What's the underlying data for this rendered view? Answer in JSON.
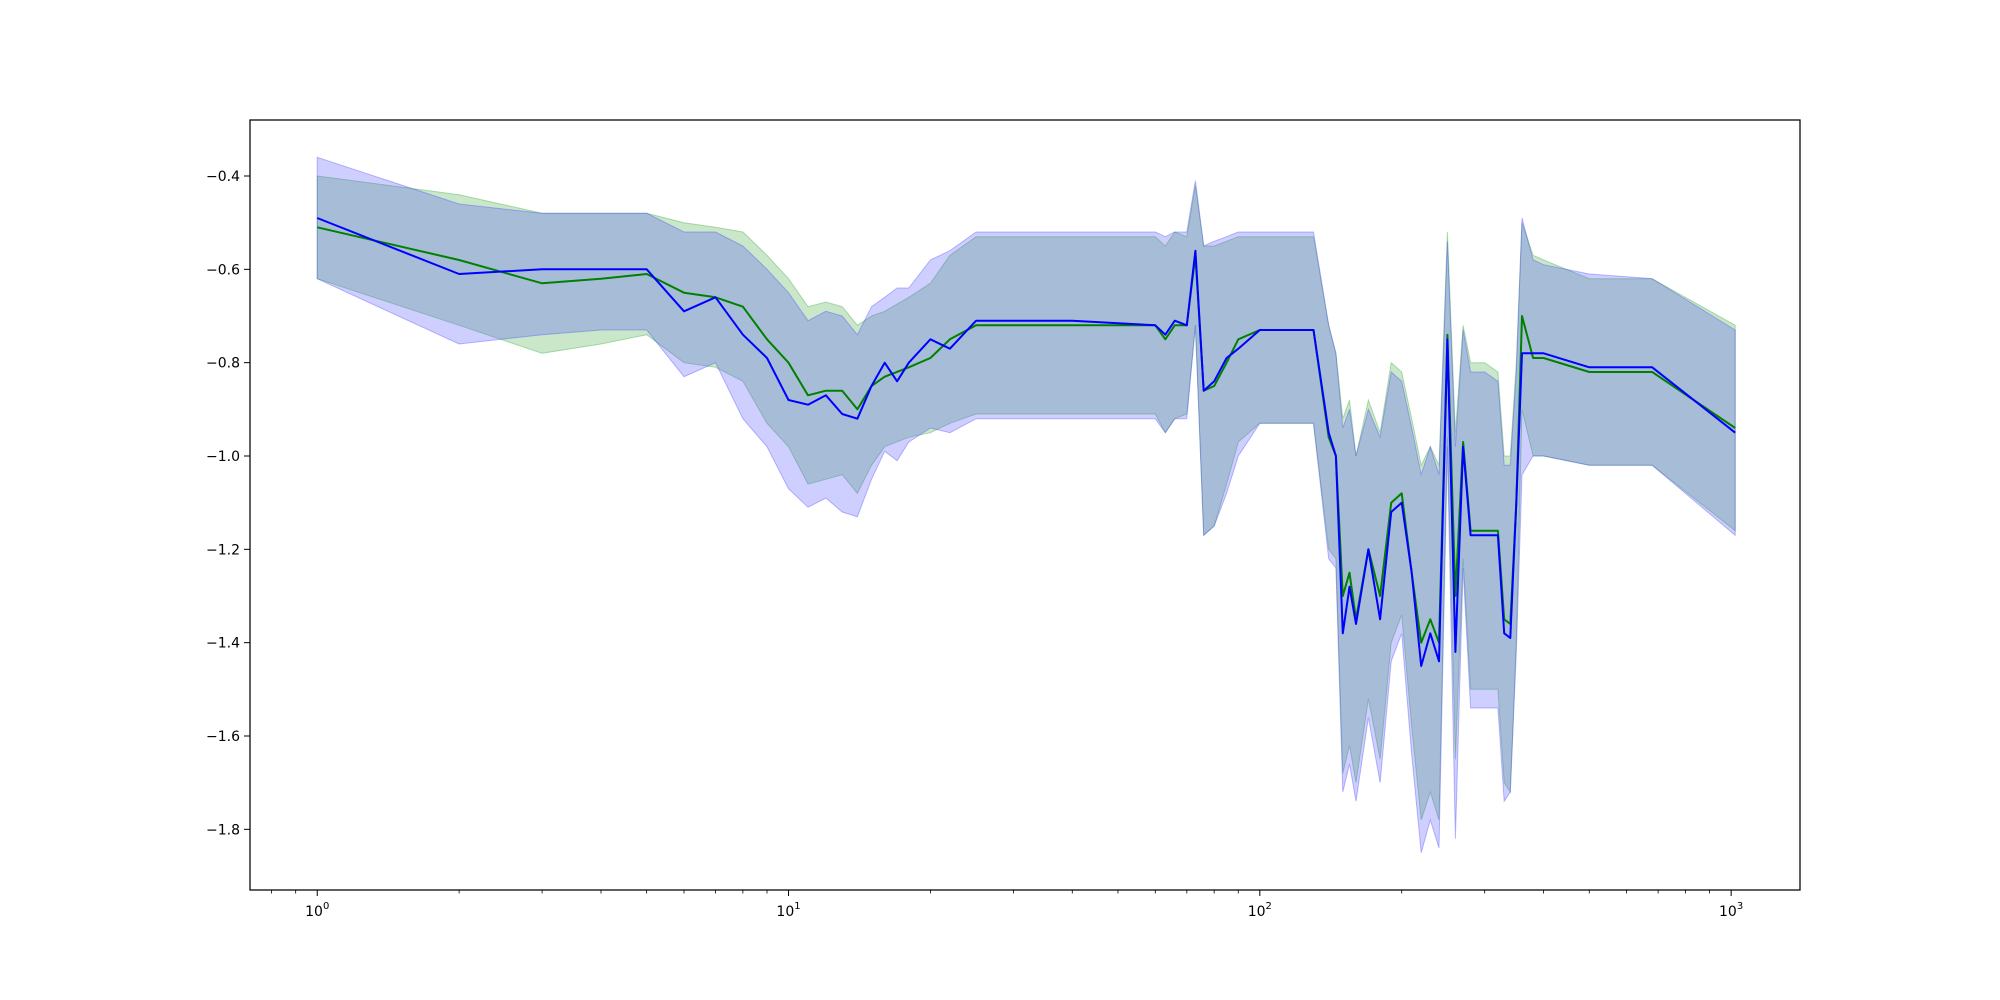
{
  "chart_data": {
    "type": "line",
    "title": "",
    "xlabel": "",
    "ylabel": "",
    "x_scale": "log",
    "xlim": [
      0.72,
      1400
    ],
    "ylim": [
      -1.93,
      -0.28
    ],
    "grid": false,
    "x_ticks": [
      {
        "value": 1,
        "base": "10",
        "exp": "0"
      },
      {
        "value": 10,
        "base": "10",
        "exp": "1"
      },
      {
        "value": 100,
        "base": "10",
        "exp": "2"
      },
      {
        "value": 1000,
        "base": "10",
        "exp": "3"
      }
    ],
    "y_ticks": [
      {
        "value": -0.4,
        "label": "−0.4"
      },
      {
        "value": -0.6,
        "label": "−0.6"
      },
      {
        "value": -0.8,
        "label": "−0.8"
      },
      {
        "value": -1.0,
        "label": "−1.0"
      },
      {
        "value": -1.2,
        "label": "−1.2"
      },
      {
        "value": -1.4,
        "label": "−1.4"
      },
      {
        "value": -1.6,
        "label": "−1.6"
      },
      {
        "value": -1.8,
        "label": "−1.8"
      }
    ],
    "series": [
      {
        "color": "#008000",
        "band_color": "#2ca02c",
        "x": [
          1,
          2,
          3,
          4,
          5,
          6,
          7,
          8,
          9,
          10,
          11,
          12,
          13,
          14,
          15,
          16,
          18,
          20,
          22,
          25,
          40,
          60,
          63,
          66,
          70,
          73,
          76,
          80,
          85,
          90,
          100,
          130,
          140,
          145,
          150,
          155,
          160,
          170,
          180,
          190,
          200,
          210,
          220,
          230,
          240,
          250,
          260,
          270,
          280,
          300,
          320,
          330,
          340,
          350,
          360,
          380,
          400,
          500,
          680,
          1020
        ],
        "y": [
          -0.51,
          -0.58,
          -0.63,
          -0.62,
          -0.61,
          -0.65,
          -0.66,
          -0.68,
          -0.75,
          -0.8,
          -0.87,
          -0.86,
          -0.86,
          -0.9,
          -0.85,
          -0.83,
          -0.81,
          -0.79,
          -0.75,
          -0.72,
          -0.72,
          -0.72,
          -0.75,
          -0.72,
          -0.72,
          -0.57,
          -0.86,
          -0.85,
          -0.8,
          -0.75,
          -0.73,
          -0.73,
          -0.96,
          -1.0,
          -1.3,
          -1.25,
          -1.35,
          -1.2,
          -1.3,
          -1.1,
          -1.08,
          -1.25,
          -1.4,
          -1.35,
          -1.4,
          -0.74,
          -1.3,
          -0.97,
          -1.16,
          -1.16,
          -1.16,
          -1.35,
          -1.36,
          -1.1,
          -0.7,
          -0.79,
          -0.79,
          -0.82,
          -0.82,
          -0.94
        ],
        "upper": [
          -0.4,
          -0.44,
          -0.48,
          -0.48,
          -0.48,
          -0.5,
          -0.51,
          -0.52,
          -0.57,
          -0.62,
          -0.68,
          -0.67,
          -0.68,
          -0.72,
          -0.7,
          -0.69,
          -0.66,
          -0.63,
          -0.57,
          -0.53,
          -0.53,
          -0.53,
          -0.55,
          -0.52,
          -0.53,
          -0.42,
          -0.55,
          -0.55,
          -0.54,
          -0.53,
          -0.53,
          -0.53,
          -0.72,
          -0.78,
          -0.92,
          -0.88,
          -1.0,
          -0.88,
          -0.95,
          -0.8,
          -0.82,
          -0.92,
          -1.02,
          -0.98,
          -1.02,
          -0.52,
          -0.95,
          -0.72,
          -0.8,
          -0.8,
          -0.82,
          -1.0,
          -1.0,
          -0.8,
          -0.5,
          -0.57,
          -0.58,
          -0.62,
          -0.62,
          -0.72
        ],
        "lower": [
          -0.62,
          -0.72,
          -0.78,
          -0.76,
          -0.74,
          -0.8,
          -0.81,
          -0.84,
          -0.93,
          -0.98,
          -1.06,
          -1.05,
          -1.04,
          -1.08,
          -1.02,
          -0.98,
          -0.96,
          -0.95,
          -0.93,
          -0.91,
          -0.91,
          -0.91,
          -0.95,
          -0.92,
          -0.91,
          -0.72,
          -1.17,
          -1.15,
          -1.06,
          -0.97,
          -0.93,
          -0.93,
          -1.2,
          -1.22,
          -1.68,
          -1.62,
          -1.7,
          -1.52,
          -1.65,
          -1.4,
          -1.34,
          -1.58,
          -1.78,
          -1.72,
          -1.78,
          -0.96,
          -1.65,
          -1.22,
          -1.5,
          -1.5,
          -1.5,
          -1.7,
          -1.72,
          -1.4,
          -0.9,
          -1.0,
          -1.0,
          -1.02,
          -1.02,
          -1.16
        ]
      },
      {
        "color": "#0000ff",
        "band_color": "#4040ff",
        "x": [
          1,
          2,
          3,
          4,
          5,
          6,
          7,
          8,
          9,
          10,
          11,
          12,
          13,
          14,
          15,
          16,
          17,
          18,
          20,
          22,
          25,
          40,
          60,
          63,
          66,
          70,
          73,
          76,
          80,
          85,
          90,
          100,
          130,
          140,
          145,
          150,
          155,
          160,
          170,
          180,
          190,
          200,
          210,
          220,
          230,
          240,
          250,
          260,
          270,
          280,
          300,
          320,
          330,
          340,
          350,
          360,
          380,
          400,
          500,
          680,
          1020
        ],
        "y": [
          -0.49,
          -0.61,
          -0.6,
          -0.6,
          -0.6,
          -0.69,
          -0.66,
          -0.74,
          -0.79,
          -0.88,
          -0.89,
          -0.87,
          -0.91,
          -0.92,
          -0.85,
          -0.8,
          -0.84,
          -0.8,
          -0.75,
          -0.77,
          -0.71,
          -0.71,
          -0.72,
          -0.74,
          -0.71,
          -0.72,
          -0.56,
          -0.86,
          -0.84,
          -0.79,
          -0.77,
          -0.73,
          -0.73,
          -0.95,
          -1.0,
          -1.38,
          -1.28,
          -1.36,
          -1.2,
          -1.35,
          -1.12,
          -1.1,
          -1.25,
          -1.45,
          -1.38,
          -1.44,
          -0.75,
          -1.42,
          -0.98,
          -1.17,
          -1.17,
          -1.17,
          -1.38,
          -1.39,
          -1.1,
          -0.78,
          -0.78,
          -0.78,
          -0.81,
          -0.81,
          -0.95
        ],
        "upper": [
          -0.36,
          -0.46,
          -0.48,
          -0.48,
          -0.48,
          -0.52,
          -0.52,
          -0.55,
          -0.6,
          -0.65,
          -0.71,
          -0.69,
          -0.7,
          -0.74,
          -0.68,
          -0.66,
          -0.64,
          -0.64,
          -0.58,
          -0.56,
          -0.52,
          -0.52,
          -0.52,
          -0.53,
          -0.52,
          -0.52,
          -0.41,
          -0.55,
          -0.54,
          -0.53,
          -0.52,
          -0.52,
          -0.52,
          -0.72,
          -0.78,
          -0.94,
          -0.9,
          -1.0,
          -0.9,
          -0.96,
          -0.82,
          -0.84,
          -0.94,
          -1.04,
          -0.98,
          -1.04,
          -0.54,
          -0.98,
          -0.73,
          -0.82,
          -0.82,
          -0.84,
          -1.02,
          -1.02,
          -0.82,
          -0.49,
          -0.58,
          -0.59,
          -0.61,
          -0.62,
          -0.73
        ],
        "lower": [
          -0.62,
          -0.76,
          -0.74,
          -0.73,
          -0.73,
          -0.83,
          -0.8,
          -0.92,
          -0.98,
          -1.07,
          -1.11,
          -1.09,
          -1.12,
          -1.13,
          -1.05,
          -0.99,
          -1.01,
          -0.97,
          -0.94,
          -0.95,
          -0.92,
          -0.92,
          -0.92,
          -0.95,
          -0.92,
          -0.92,
          -0.72,
          -1.17,
          -1.15,
          -1.08,
          -1.0,
          -0.93,
          -0.93,
          -1.22,
          -1.24,
          -1.72,
          -1.66,
          -1.74,
          -1.56,
          -1.7,
          -1.44,
          -1.38,
          -1.64,
          -1.85,
          -1.78,
          -1.84,
          -0.98,
          -1.82,
          -1.24,
          -1.54,
          -1.54,
          -1.54,
          -1.74,
          -1.72,
          -1.42,
          -1.04,
          -1.0,
          -1.0,
          -1.02,
          -1.02,
          -1.17
        ]
      }
    ]
  }
}
